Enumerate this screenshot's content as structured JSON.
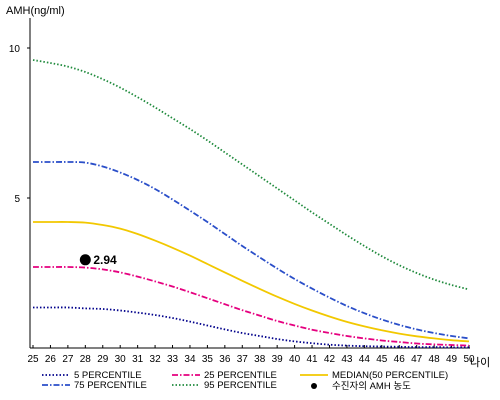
{
  "chart_data": {
    "type": "line",
    "ylabel": "AMH(ng/ml)",
    "xlabel": "나이",
    "x": [
      25,
      26,
      27,
      28,
      29,
      30,
      31,
      32,
      33,
      34,
      35,
      36,
      37,
      38,
      39,
      40,
      41,
      42,
      43,
      44,
      45,
      46,
      47,
      48,
      49,
      50
    ],
    "xlim": [
      25,
      50
    ],
    "ylim": [
      0,
      11
    ],
    "yticks": [
      5,
      10
    ],
    "grid": false,
    "legend_position": "bottom",
    "series": [
      {
        "name": "5 PERCENTILE",
        "color": "#00008b",
        "style": "dotted",
        "values": [
          1.35,
          1.35,
          1.35,
          1.32,
          1.3,
          1.25,
          1.18,
          1.1,
          1.0,
          0.88,
          0.75,
          0.62,
          0.5,
          0.4,
          0.3,
          0.22,
          0.16,
          0.11,
          0.08,
          0.06,
          0.05,
          0.04,
          0.03,
          0.03,
          0.02,
          0.02
        ]
      },
      {
        "name": "25 PERCENTILE",
        "color": "#e5007f",
        "style": "dashdot",
        "values": [
          2.7,
          2.7,
          2.7,
          2.68,
          2.62,
          2.52,
          2.38,
          2.22,
          2.05,
          1.86,
          1.66,
          1.46,
          1.26,
          1.08,
          0.9,
          0.75,
          0.61,
          0.5,
          0.4,
          0.32,
          0.25,
          0.2,
          0.15,
          0.12,
          0.1,
          0.08
        ]
      },
      {
        "name": "MEDIAN(50 PERCENTILE)",
        "color": "#f2c800",
        "style": "solid",
        "values": [
          4.2,
          4.2,
          4.2,
          4.18,
          4.1,
          3.98,
          3.8,
          3.58,
          3.34,
          3.08,
          2.8,
          2.52,
          2.24,
          1.97,
          1.71,
          1.47,
          1.25,
          1.05,
          0.87,
          0.72,
          0.59,
          0.48,
          0.39,
          0.32,
          0.26,
          0.22
        ]
      },
      {
        "name": "75 PERCENTILE",
        "color": "#2b4fc9",
        "style": "dashdot",
        "values": [
          6.2,
          6.2,
          6.2,
          6.18,
          6.05,
          5.85,
          5.6,
          5.3,
          4.95,
          4.58,
          4.2,
          3.8,
          3.4,
          3.02,
          2.65,
          2.3,
          1.98,
          1.68,
          1.4,
          1.16,
          0.95,
          0.77,
          0.62,
          0.5,
          0.4,
          0.32
        ]
      },
      {
        "name": "95 PERCENTILE",
        "color": "#1f8a3c",
        "style": "dotted",
        "values": [
          9.6,
          9.5,
          9.38,
          9.2,
          8.96,
          8.68,
          8.36,
          8.02,
          7.66,
          7.3,
          6.92,
          6.52,
          6.12,
          5.72,
          5.32,
          4.92,
          4.52,
          4.14,
          3.76,
          3.4,
          3.06,
          2.76,
          2.5,
          2.28,
          2.1,
          1.95
        ]
      }
    ],
    "marker": {
      "name": "수진자의 AMH 농도",
      "x": 28,
      "y": 2.94,
      "label": "2.94",
      "color": "#000000"
    }
  }
}
